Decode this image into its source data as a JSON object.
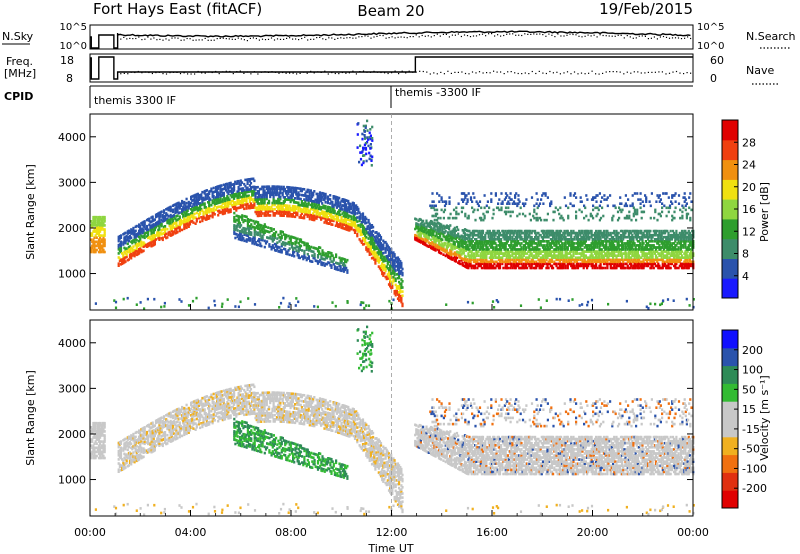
{
  "header": {
    "station": "Fort Hays East (fitACF)",
    "beam": "Beam 20",
    "date": "19/Feb/2015"
  },
  "strips": {
    "nsky_label": "N.Sky",
    "nsky_ticks": [
      "10^5",
      "10^0"
    ],
    "nsearch_label": "N.Search",
    "nsearch_ticks": [
      "10^5",
      "10^0"
    ],
    "freq_label_line1": "Freq.",
    "freq_label_line2": "[MHz]",
    "freq_ticks": [
      "18",
      "8"
    ],
    "nave_label": "Nave",
    "nave_ticks": [
      "60",
      "0"
    ],
    "cpid_label": "CPID",
    "cpid_segments": [
      {
        "label": "themis 3300 IF",
        "start_hour": 0
      },
      {
        "label": "themis -3300 IF",
        "start_hour": 12.95
      }
    ]
  },
  "x_axis": {
    "label": "Time UT",
    "ticks": [
      "00:00",
      "04:00",
      "08:00",
      "12:00",
      "16:00",
      "20:00",
      "00:00"
    ]
  },
  "colors": {
    "power": [
      "#1a1aff",
      "#2a53ac",
      "#3d8c6a",
      "#2e9e2e",
      "#8fd640",
      "#f0e010",
      "#f09010",
      "#f04010",
      "#e00000"
    ],
    "velocity": [
      "#1010ff",
      "#2a53ac",
      "#2e8b57",
      "#33bb33",
      "#c8c8c8",
      "#c8c8c8",
      "#f0b020",
      "#f07010",
      "#e03010",
      "#e00000"
    ]
  },
  "chart_data": [
    {
      "type": "heatmap",
      "name": "power",
      "ylabel": "Slant Range [km]",
      "yticks": [
        "1000",
        "2000",
        "3000",
        "4000"
      ],
      "ylim": [
        200,
        4500
      ],
      "xlim_hours": [
        0,
        24
      ],
      "colorbar_label": "Power [dB]",
      "colorbar_ticks": [
        "4",
        "8",
        "12",
        "16",
        "20",
        "24",
        "28"
      ]
    },
    {
      "type": "heatmap",
      "name": "velocity",
      "ylabel": "Slant Range [km]",
      "yticks": [
        "1000",
        "2000",
        "3000",
        "4000"
      ],
      "ylim": [
        200,
        4500
      ],
      "xlim_hours": [
        0,
        24
      ],
      "colorbar_label": "Velocity [m s⁻¹]",
      "colorbar_ticks": [
        "200",
        "100",
        "50",
        "15",
        "-15",
        "-50",
        "-100",
        "-200"
      ]
    }
  ]
}
